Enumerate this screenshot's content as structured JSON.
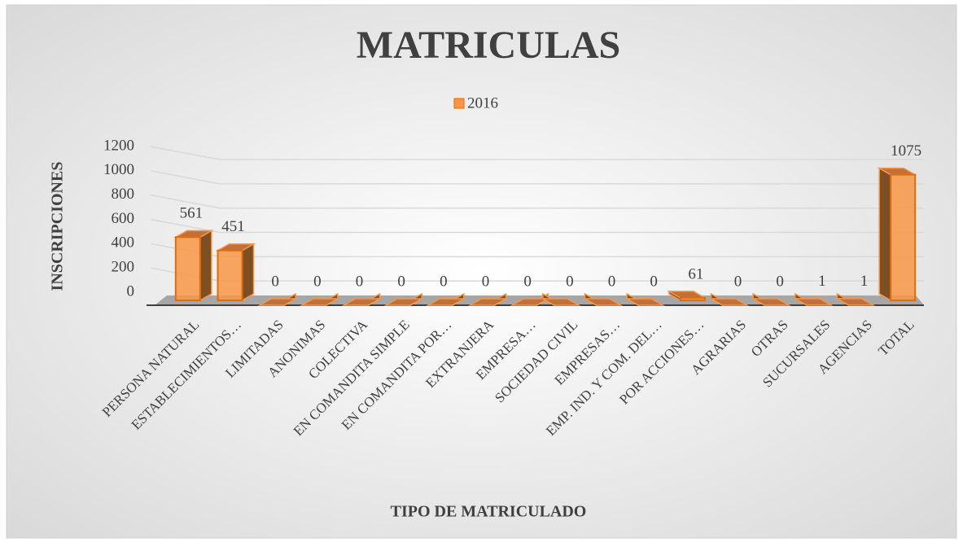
{
  "chart_data": {
    "type": "bar3d",
    "title": "MATRICULAS",
    "x_label": "TIPO DE MATRICULADO",
    "y_label": "INSCRIPCIONES",
    "categories": [
      "PERSONA NATURAL",
      "ESTABLECIMIENTOS…",
      "LIMITADAS",
      "ANONIMAS",
      "COLECTIVA",
      "EN COMANDITA SIMPLE",
      "EN COMANDITA POR…",
      "EXTRANJERA",
      "EMPRESA…",
      "SOCIEDAD CIVIL",
      "EMPRESAS…",
      "EMP. IND. Y COM. DEL…",
      "POR ACCIONES…",
      "AGRARIAS",
      "OTRAS",
      "SUCURSALES",
      "AGENCIAS",
      "TOTAL"
    ],
    "series": [
      {
        "name": "2016",
        "color": "#f79646",
        "values": [
          561,
          451,
          0,
          0,
          0,
          0,
          0,
          0,
          0,
          0,
          0,
          0,
          61,
          0,
          0,
          1,
          1,
          1075
        ]
      }
    ],
    "ylim": [
      0,
      1200
    ],
    "yticks": [
      0,
      200,
      400,
      600,
      800,
      1000,
      1200
    ],
    "grid": true,
    "legend": "top"
  }
}
